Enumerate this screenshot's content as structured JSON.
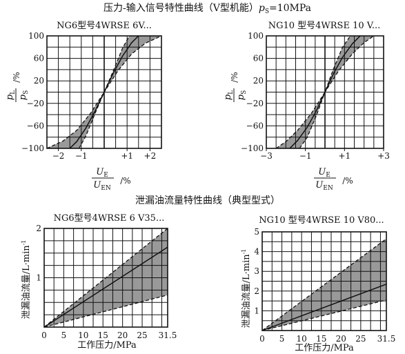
{
  "section_titles": {
    "top": "压力-输入信号特性曲线（V型机能）",
    "top_suffix": "=10MPa",
    "bottom": "泄漏油流量特性曲线（典型型式）"
  },
  "axis_text": {
    "ps_symbol": "p",
    "ps_sub": "S",
    "pl_num": "p",
    "pl_num_sub": "L",
    "pl_den": "p",
    "pl_den_sub": "S",
    "pl_unit": "/%",
    "ue_num": "U",
    "ue_num_sub": "E",
    "ue_den": "U",
    "ue_den_sub": "EN",
    "ue_unit": "/%",
    "leak_ylabel": "泄漏油流量/L·min",
    "leak_ylabel_sup": "-1",
    "pressure_xlabel": "工作压力/MPa"
  },
  "chart_data": [
    {
      "type": "line",
      "subtitle": "NG6型号4WRSE 6V...",
      "x_ticks": [
        -2,
        -1,
        1,
        2
      ],
      "x_tick_labels": [
        "−2",
        "−1",
        "+1",
        "+2"
      ],
      "y_ticks": [
        -100,
        -60,
        -20,
        20,
        60,
        100
      ],
      "y_tick_labels": [
        "−100",
        "−60",
        "−20",
        "20",
        "60",
        "100"
      ],
      "xlim": [
        -2.5,
        2.5
      ],
      "ylim": [
        -100,
        100
      ],
      "series": [
        {
          "role": "band-upper",
          "x": [
            -2.5,
            -1.8,
            -1.2,
            -0.6,
            0,
            0.4,
            0.8,
            1.1
          ],
          "y": [
            -100,
            -87,
            -68,
            -38,
            0,
            38,
            78,
            100
          ]
        },
        {
          "role": "band-lower",
          "x": [
            -1.1,
            -0.8,
            -0.4,
            0,
            0.6,
            1.2,
            1.8,
            2.5
          ],
          "y": [
            -100,
            -78,
            -38,
            0,
            38,
            68,
            87,
            100
          ]
        },
        {
          "role": "nominal",
          "x": [
            -1.5,
            -1.2,
            -0.8,
            -0.4,
            0,
            0.4,
            0.8,
            1.2,
            1.5
          ],
          "y": [
            -100,
            -88,
            -64,
            -34,
            0,
            34,
            64,
            88,
            100
          ]
        }
      ]
    },
    {
      "type": "line",
      "subtitle": "NG10 型号4WRSE 10 V...",
      "x_ticks": [
        -3,
        -1,
        1,
        3
      ],
      "x_tick_labels": [
        "−3",
        "−1",
        "+1",
        "+3"
      ],
      "y_ticks": [
        -100,
        -60,
        -20,
        20,
        60,
        100
      ],
      "y_tick_labels": [
        "−100",
        "−60",
        "−20",
        "20",
        "60",
        "100"
      ],
      "xlim": [
        -3,
        3
      ],
      "ylim": [
        -100,
        100
      ],
      "series": [
        {
          "role": "band-upper",
          "x": [
            -2.5,
            -2.0,
            -1.4,
            -0.7,
            0,
            0.4,
            0.9,
            1.3
          ],
          "y": [
            -100,
            -88,
            -68,
            -38,
            0,
            38,
            80,
            100
          ]
        },
        {
          "role": "band-lower",
          "x": [
            -1.3,
            -0.9,
            -0.4,
            0,
            0.7,
            1.4,
            2.0,
            2.5
          ],
          "y": [
            -100,
            -80,
            -38,
            0,
            38,
            68,
            88,
            100
          ]
        },
        {
          "role": "nominal",
          "x": [
            -1.8,
            -1.4,
            -0.9,
            -0.45,
            0,
            0.45,
            0.9,
            1.4,
            1.8
          ],
          "y": [
            -100,
            -86,
            -62,
            -34,
            0,
            34,
            62,
            86,
            100
          ]
        }
      ]
    },
    {
      "type": "line",
      "subtitle": "NG6型号4WRSE 6 V35...",
      "x_ticks": [
        0,
        5,
        10,
        15,
        20,
        25,
        31.5
      ],
      "x_tick_labels": [
        "0",
        "5",
        "10",
        "15",
        "20",
        "25",
        "31.5"
      ],
      "y_ticks": [
        1,
        2
      ],
      "y_tick_labels": [
        "1",
        "2"
      ],
      "xlim": [
        0,
        31.5
      ],
      "ylim": [
        0,
        2
      ],
      "series": [
        {
          "role": "band-upper",
          "x": [
            0,
            31.5
          ],
          "y": [
            0,
            2.0
          ]
        },
        {
          "role": "band-lower",
          "x": [
            0,
            31.5
          ],
          "y": [
            0,
            0.65
          ]
        },
        {
          "role": "nominal",
          "x": [
            0,
            31.5
          ],
          "y": [
            0,
            1.62
          ]
        }
      ]
    },
    {
      "type": "line",
      "subtitle": "NG10 型号4WRSE 10 V80...",
      "x_ticks": [
        0,
        5,
        10,
        15,
        20,
        25,
        31.5
      ],
      "x_tick_labels": [
        "0",
        "5",
        "10",
        "15",
        "20",
        "25",
        "31.5"
      ],
      "y_ticks": [
        1,
        2,
        3,
        4,
        5
      ],
      "y_tick_labels": [
        "1",
        "2",
        "3",
        "4",
        "5"
      ],
      "xlim": [
        0,
        31.5
      ],
      "ylim": [
        0,
        5
      ],
      "series": [
        {
          "role": "band-upper",
          "x": [
            0,
            31.5
          ],
          "y": [
            0,
            4.65
          ]
        },
        {
          "role": "band-lower",
          "x": [
            0,
            31.5
          ],
          "y": [
            0,
            1.55
          ]
        },
        {
          "role": "nominal",
          "x": [
            0,
            31.5
          ],
          "y": [
            0,
            2.35
          ]
        }
      ]
    }
  ]
}
